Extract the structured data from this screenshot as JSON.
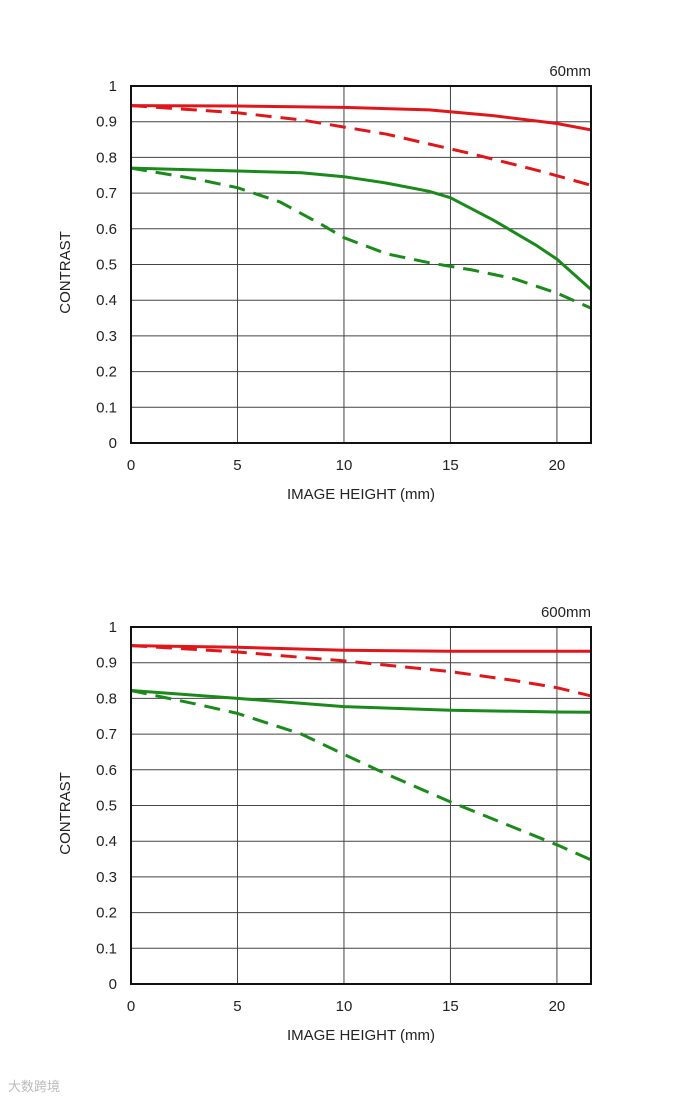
{
  "watermark": "大数跨境",
  "chart_data": [
    {
      "type": "line",
      "focal_label": "60mm",
      "xlabel": "IMAGE HEIGHT (mm)",
      "ylabel": "CONTRAST",
      "xlim": [
        0,
        21.6
      ],
      "ylim": [
        0,
        1
      ],
      "x_ticks": [
        "0",
        "5",
        "10",
        "15",
        "20"
      ],
      "y_ticks": [
        "0",
        "0.1",
        "0.2",
        "0.3",
        "0.4",
        "0.5",
        "0.6",
        "0.7",
        "0.8",
        "0.9",
        "1"
      ],
      "grid": true,
      "colors": {
        "red": "#e0161b",
        "green": "#1a8a1a"
      },
      "series": [
        {
          "color": "red",
          "style": "solid",
          "x": [
            0,
            5,
            10,
            14,
            17,
            20,
            21.6
          ],
          "y": [
            0.945,
            0.944,
            0.94,
            0.933,
            0.917,
            0.895,
            0.877
          ]
        },
        {
          "color": "red",
          "style": "dashed",
          "x": [
            0,
            5,
            8,
            12,
            16,
            19,
            21.6
          ],
          "y": [
            0.945,
            0.925,
            0.905,
            0.865,
            0.81,
            0.765,
            0.722
          ]
        },
        {
          "color": "green",
          "style": "solid",
          "x": [
            0,
            5,
            8,
            10,
            12,
            14,
            15,
            17,
            19,
            20,
            21.6
          ],
          "y": [
            0.77,
            0.762,
            0.757,
            0.746,
            0.728,
            0.705,
            0.687,
            0.625,
            0.555,
            0.515,
            0.43
          ]
        },
        {
          "color": "green",
          "style": "dashed",
          "x": [
            0,
            3,
            5,
            7,
            9,
            10,
            12,
            14,
            16,
            18,
            20,
            21.6
          ],
          "y": [
            0.77,
            0.74,
            0.715,
            0.675,
            0.61,
            0.575,
            0.53,
            0.505,
            0.485,
            0.46,
            0.42,
            0.378
          ]
        }
      ]
    },
    {
      "type": "line",
      "focal_label": "600mm",
      "xlabel": "IMAGE HEIGHT (mm)",
      "ylabel": "CONTRAST",
      "xlim": [
        0,
        21.6
      ],
      "ylim": [
        0,
        1
      ],
      "x_ticks": [
        "0",
        "5",
        "10",
        "15",
        "20"
      ],
      "y_ticks": [
        "0",
        "0.1",
        "0.2",
        "0.3",
        "0.4",
        "0.5",
        "0.6",
        "0.7",
        "0.8",
        "0.9",
        "1"
      ],
      "grid": true,
      "colors": {
        "red": "#e0161b",
        "green": "#1a8a1a"
      },
      "series": [
        {
          "color": "red",
          "style": "solid",
          "x": [
            0,
            5,
            10,
            15,
            20,
            21.6
          ],
          "y": [
            0.948,
            0.943,
            0.935,
            0.932,
            0.932,
            0.932
          ]
        },
        {
          "color": "red",
          "style": "dashed",
          "x": [
            0,
            5,
            10,
            15,
            18,
            20,
            21.6
          ],
          "y": [
            0.948,
            0.93,
            0.905,
            0.875,
            0.85,
            0.83,
            0.807
          ]
        },
        {
          "color": "green",
          "style": "solid",
          "x": [
            0,
            5,
            10,
            15,
            20,
            21.6
          ],
          "y": [
            0.822,
            0.8,
            0.777,
            0.767,
            0.762,
            0.761
          ]
        },
        {
          "color": "green",
          "style": "dashed",
          "x": [
            0,
            3,
            5,
            8,
            10,
            12,
            15,
            18,
            20,
            21.6
          ],
          "y": [
            0.822,
            0.785,
            0.758,
            0.7,
            0.643,
            0.588,
            0.51,
            0.438,
            0.39,
            0.348
          ]
        }
      ]
    }
  ]
}
